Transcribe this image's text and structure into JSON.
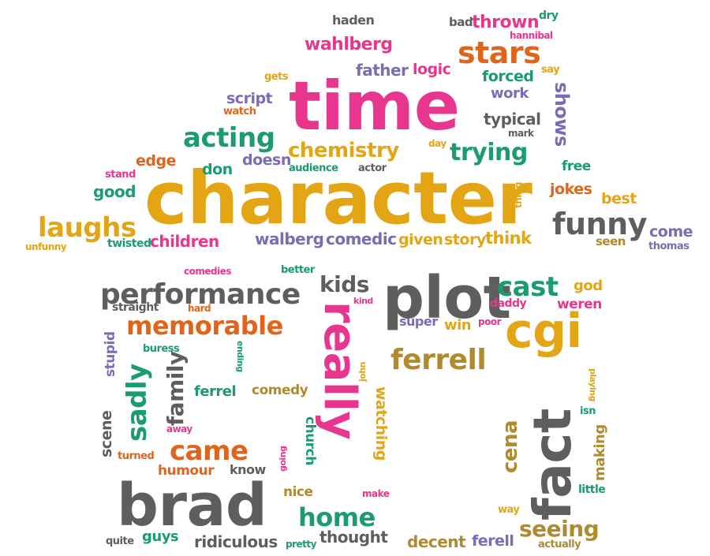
{
  "palette": {
    "pink": "#e8368f",
    "gold": "#e3a514",
    "green": "#1a9c6e",
    "grey": "#5e5e5e",
    "purple": "#7a6cb5",
    "orange": "#e0651a",
    "olive": "#b08a2c"
  },
  "words": [
    {
      "text": "character",
      "color": "gold"
    },
    {
      "text": "time",
      "color": "pink"
    },
    {
      "text": "plot",
      "color": "grey"
    },
    {
      "text": "brad",
      "color": "grey"
    },
    {
      "text": "really",
      "color": "pink"
    },
    {
      "text": "fact",
      "color": "grey"
    },
    {
      "text": "cgi",
      "color": "gold"
    },
    {
      "text": "performance",
      "color": "grey"
    },
    {
      "text": "memorable",
      "color": "orange"
    },
    {
      "text": "ferrell",
      "color": "olive"
    },
    {
      "text": "acting",
      "color": "green"
    },
    {
      "text": "stars",
      "color": "orange"
    },
    {
      "text": "funny",
      "color": "grey"
    },
    {
      "text": "laughs",
      "color": "gold"
    },
    {
      "text": "cast",
      "color": "green"
    },
    {
      "text": "chemistry",
      "color": "gold"
    },
    {
      "text": "came",
      "color": "orange"
    },
    {
      "text": "home",
      "color": "green"
    },
    {
      "text": "seeing",
      "color": "olive"
    },
    {
      "text": "trying",
      "color": "green"
    },
    {
      "text": "wahlberg",
      "color": "pink"
    },
    {
      "text": "sadly",
      "color": "green"
    },
    {
      "text": "family",
      "color": "grey"
    },
    {
      "text": "cena",
      "color": "olive"
    },
    {
      "text": "kids",
      "color": "grey"
    },
    {
      "text": "children",
      "color": "pink"
    },
    {
      "text": "walberg",
      "color": "purple"
    },
    {
      "text": "comedic",
      "color": "purple"
    },
    {
      "text": "given",
      "color": "gold"
    },
    {
      "text": "story",
      "color": "gold"
    },
    {
      "text": "think",
      "color": "gold"
    },
    {
      "text": "shows",
      "color": "purple"
    },
    {
      "text": "typical",
      "color": "grey"
    },
    {
      "text": "forced",
      "color": "green"
    },
    {
      "text": "father",
      "color": "purple"
    },
    {
      "text": "logic",
      "color": "pink"
    },
    {
      "text": "thrown",
      "color": "pink"
    },
    {
      "text": "work",
      "color": "purple"
    },
    {
      "text": "script",
      "color": "purple"
    },
    {
      "text": "edge",
      "color": "orange"
    },
    {
      "text": "good",
      "color": "green"
    },
    {
      "text": "don",
      "color": "green"
    },
    {
      "text": "doesn",
      "color": "purple"
    },
    {
      "text": "jokes",
      "color": "orange"
    },
    {
      "text": "best",
      "color": "gold"
    },
    {
      "text": "free",
      "color": "green"
    },
    {
      "text": "come",
      "color": "purple"
    },
    {
      "text": "seen",
      "color": "olive"
    },
    {
      "text": "ridiculous",
      "color": "grey"
    },
    {
      "text": "thought",
      "color": "grey"
    },
    {
      "text": "decent",
      "color": "olive"
    },
    {
      "text": "ferell",
      "color": "purple"
    },
    {
      "text": "guys",
      "color": "green"
    },
    {
      "text": "humour",
      "color": "orange"
    },
    {
      "text": "know",
      "color": "grey"
    },
    {
      "text": "nice",
      "color": "olive"
    },
    {
      "text": "church",
      "color": "green"
    },
    {
      "text": "watching",
      "color": "gold"
    },
    {
      "text": "making",
      "color": "olive"
    },
    {
      "text": "scene",
      "color": "grey"
    },
    {
      "text": "stupid",
      "color": "purple"
    },
    {
      "text": "ferrel",
      "color": "green"
    },
    {
      "text": "comedy",
      "color": "olive"
    },
    {
      "text": "super",
      "color": "purple"
    },
    {
      "text": "win",
      "color": "gold"
    },
    {
      "text": "god",
      "color": "gold"
    },
    {
      "text": "weren",
      "color": "pink"
    },
    {
      "text": "daddy",
      "color": "pink"
    },
    {
      "text": "straight",
      "color": "grey"
    },
    {
      "text": "haden",
      "color": "grey"
    },
    {
      "text": "bad",
      "color": "grey"
    },
    {
      "text": "dry",
      "color": "green"
    },
    {
      "text": "hannibal",
      "color": "pink"
    },
    {
      "text": "say",
      "color": "gold"
    },
    {
      "text": "gets",
      "color": "gold"
    },
    {
      "text": "watch",
      "color": "orange"
    },
    {
      "text": "mark",
      "color": "grey"
    },
    {
      "text": "day",
      "color": "gold"
    },
    {
      "text": "stand",
      "color": "pink"
    },
    {
      "text": "audience",
      "color": "green"
    },
    {
      "text": "actor",
      "color": "grey"
    },
    {
      "text": "thing",
      "color": "gold"
    },
    {
      "text": "thomas",
      "color": "purple"
    },
    {
      "text": "unfunny",
      "color": "gold"
    },
    {
      "text": "twisted",
      "color": "green"
    },
    {
      "text": "comedies",
      "color": "pink"
    },
    {
      "text": "better",
      "color": "green"
    },
    {
      "text": "hard",
      "color": "orange"
    },
    {
      "text": "kind",
      "color": "pink"
    },
    {
      "text": "poor",
      "color": "pink"
    },
    {
      "text": "buress",
      "color": "green"
    },
    {
      "text": "ending",
      "color": "green"
    },
    {
      "text": "john",
      "color": "gold"
    },
    {
      "text": "playing",
      "color": "gold"
    },
    {
      "text": "isn",
      "color": "green"
    },
    {
      "text": "away",
      "color": "pink"
    },
    {
      "text": "turned",
      "color": "orange"
    },
    {
      "text": "going",
      "color": "pink"
    },
    {
      "text": "make",
      "color": "pink"
    },
    {
      "text": "little",
      "color": "green"
    },
    {
      "text": "way",
      "color": "gold"
    },
    {
      "text": "actually",
      "color": "olive"
    },
    {
      "text": "quite",
      "color": "grey"
    },
    {
      "text": "pretty",
      "color": "green"
    }
  ]
}
